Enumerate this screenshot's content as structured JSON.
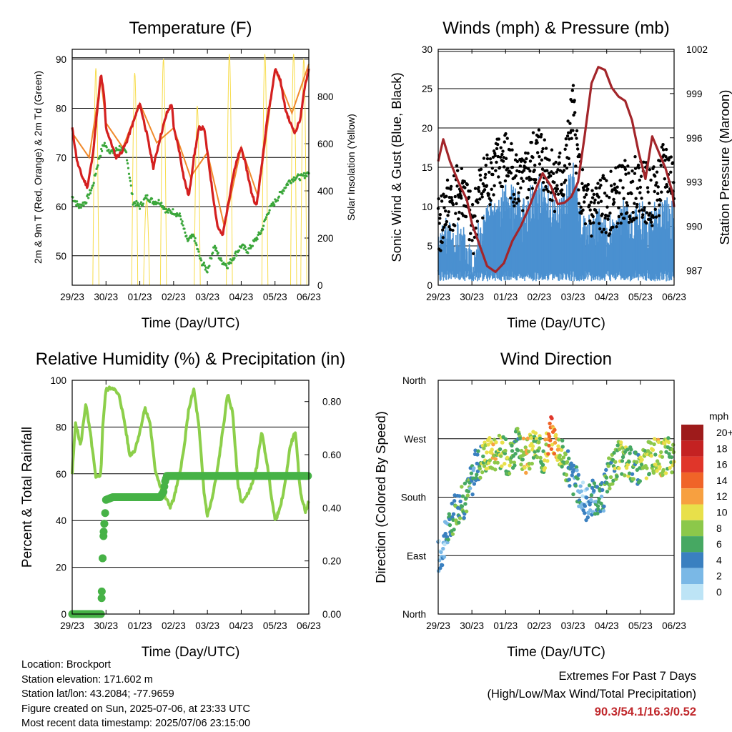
{
  "chart_data": [
    {
      "type": "line",
      "title": "Temperature (F)",
      "xlabel": "Time (Day/UTC)",
      "ylabel": "2m & 9m T (Red, Orange) & 2m Td (Green)",
      "y2label": "Solar Insolation (Yellow)",
      "x_ticks": [
        "29/23",
        "30/23",
        "01/23",
        "02/23",
        "03/23",
        "04/23",
        "05/23",
        "06/23"
      ],
      "ylim": [
        44,
        92
      ],
      "y_ticks": [
        50,
        60,
        70,
        80,
        90
      ],
      "y2lim": [
        0,
        1000
      ],
      "y2_ticks": [
        0,
        200,
        400,
        600,
        800
      ],
      "grid": true,
      "series": [
        {
          "name": "2m T",
          "color": "#d42020",
          "x": [
            0,
            0.15,
            0.3,
            0.45,
            0.6,
            0.75,
            0.85,
            0.95,
            1.0,
            1.15,
            1.3,
            1.45,
            1.6,
            1.75,
            1.9,
            2.0,
            2.2,
            2.4,
            2.6,
            2.8,
            2.95,
            3.0,
            3.15,
            3.3,
            3.45,
            3.6,
            3.75,
            3.9,
            4.0,
            4.15,
            4.3,
            4.45,
            4.6,
            4.75,
            4.9,
            5.0,
            5.15,
            5.3,
            5.45,
            5.6,
            5.75,
            5.9,
            6.0,
            6.15,
            6.3,
            6.45,
            6.6,
            6.75,
            6.9,
            7.0
          ],
          "values": [
            76,
            69,
            66,
            64,
            70,
            80,
            87,
            82,
            76,
            73,
            70,
            71,
            73,
            76,
            79,
            81,
            75,
            68,
            74,
            79,
            81,
            76,
            72,
            66,
            62,
            70,
            76,
            76,
            71,
            63,
            56,
            54,
            60,
            66,
            70,
            72,
            68,
            63,
            60,
            68,
            77,
            83,
            88,
            86,
            80,
            77,
            75,
            78,
            85,
            88
          ]
        },
        {
          "name": "9m T",
          "color": "#f08a2c",
          "x": [
            0,
            0.5,
            0.85,
            1.0,
            1.5,
            2.0,
            2.5,
            3.0,
            3.5,
            4.0,
            4.5,
            5.0,
            5.5,
            6.0,
            6.5,
            7.0
          ],
          "values": [
            75,
            70,
            86,
            77,
            72,
            81,
            73,
            76,
            66,
            71,
            56,
            72,
            62,
            88,
            79,
            89
          ]
        },
        {
          "name": "2m Td",
          "color": "#3aa63a",
          "x": [
            0,
            0.2,
            0.4,
            0.6,
            0.8,
            0.95,
            1.0,
            1.2,
            1.4,
            1.6,
            1.8,
            2.0,
            2.2,
            2.4,
            2.6,
            2.8,
            3.0,
            3.2,
            3.4,
            3.6,
            3.8,
            4.0,
            4.2,
            4.4,
            4.6,
            4.8,
            5.0,
            5.2,
            5.4,
            5.6,
            5.8,
            6.0,
            6.2,
            6.4,
            6.6,
            6.8,
            7.0
          ],
          "values": [
            62,
            60,
            61,
            64,
            70,
            73,
            72,
            71,
            72,
            71,
            61,
            60,
            62,
            61,
            61,
            59,
            59,
            58,
            53,
            54,
            49,
            47,
            52,
            49,
            48,
            50,
            52,
            51,
            53,
            55,
            59,
            61,
            63,
            65,
            66,
            66,
            67
          ]
        },
        {
          "name": "Solar Insolation",
          "color": "#f7dc4a",
          "axis": "y2",
          "peak_values": [
            920,
            900,
            360,
            960,
            760,
            980,
            980,
            980,
            960
          ],
          "peak_x": [
            0.7,
            1.85,
            2.2,
            2.7,
            3.7,
            4.65,
            5.7,
            6.55,
            6.85
          ]
        }
      ]
    },
    {
      "type": "scatter",
      "title": "Winds (mph) & Pressure (mb)",
      "xlabel": "Time (Day/UTC)",
      "ylabel": "Sonic Wind & Gust (Blue, Black)",
      "y2label": "Station Pressure (Maroon)",
      "x_ticks": [
        "29/23",
        "30/23",
        "01/23",
        "02/23",
        "03/23",
        "04/23",
        "05/23",
        "06/23"
      ],
      "ylim": [
        0,
        30
      ],
      "y_ticks": [
        0,
        5,
        10,
        15,
        20,
        25,
        30
      ],
      "y2lim": [
        986,
        1002
      ],
      "y2_ticks": [
        987,
        990,
        993,
        996,
        999,
        1002
      ],
      "grid": true,
      "series": [
        {
          "name": "Sonic Wind",
          "color": "#4a90d0",
          "x": [
            0,
            0.25,
            0.5,
            0.75,
            1.0,
            1.25,
            1.5,
            1.75,
            2.0,
            2.25,
            2.5,
            2.75,
            3.0,
            3.25,
            3.5,
            3.75,
            4.0,
            4.25,
            4.5,
            4.75,
            5.0,
            5.25,
            5.5,
            5.75,
            6.0,
            6.25,
            6.5,
            6.75,
            7.0
          ],
          "values": [
            4,
            6,
            5,
            5,
            3,
            6,
            8,
            9,
            10,
            10,
            8,
            10,
            11,
            10,
            9,
            9,
            13,
            7,
            6,
            7,
            6,
            6,
            8,
            7,
            8,
            7,
            8,
            9,
            8
          ]
        },
        {
          "name": "Gust",
          "color": "#000000",
          "x": [
            0,
            0.25,
            0.5,
            0.75,
            1.0,
            1.25,
            1.5,
            1.75,
            2.0,
            2.25,
            2.5,
            2.75,
            3.0,
            3.25,
            3.5,
            3.75,
            4.0,
            4.25,
            4.5,
            4.75,
            5.0,
            5.25,
            5.5,
            5.75,
            6.0,
            6.25,
            6.5,
            6.75,
            7.0
          ],
          "values": [
            7,
            10,
            11,
            12,
            7,
            12,
            14,
            15,
            16,
            14,
            12,
            15,
            17,
            15,
            13,
            14,
            22,
            11,
            9,
            10,
            10,
            11,
            12,
            12,
            13,
            11,
            12,
            15,
            13
          ]
        },
        {
          "name": "Station Pressure",
          "color": "#a3252a",
          "axis": "y2",
          "x": [
            0,
            0.15,
            0.35,
            0.6,
            0.85,
            1.0,
            1.2,
            1.45,
            1.7,
            1.95,
            2.2,
            2.45,
            2.7,
            2.95,
            3.1,
            3.35,
            3.55,
            3.75,
            3.95,
            4.15,
            4.35,
            4.55,
            4.75,
            4.95,
            5.15,
            5.35,
            5.55,
            5.75,
            5.95,
            6.15,
            6.35,
            6.55,
            6.75,
            6.95,
            7.0
          ],
          "values": [
            994.4,
            995.9,
            994.4,
            993.0,
            991.8,
            990.2,
            988.9,
            987.3,
            986.9,
            987.5,
            989.0,
            990.0,
            991.3,
            992.8,
            993.6,
            992.7,
            991.5,
            991.6,
            992.0,
            993.0,
            996.2,
            999.7,
            1000.8,
            1000.6,
            999.4,
            998.8,
            998.5,
            997.2,
            995.0,
            993.2,
            996.1,
            995.0,
            993.9,
            992.3,
            991.3
          ]
        }
      ]
    },
    {
      "type": "line",
      "title": "Relative Humidity (%) & Precipitation (in)",
      "xlabel": "Time (Day/UTC)",
      "ylabel": "Percent & Total Rainfall",
      "x_ticks": [
        "29/23",
        "30/23",
        "01/23",
        "02/23",
        "03/23",
        "04/23",
        "05/23",
        "06/23"
      ],
      "ylim": [
        0,
        100
      ],
      "y_ticks": [
        0,
        20,
        40,
        60,
        80,
        100
      ],
      "y2lim": [
        0,
        0.88
      ],
      "y2_ticks": [
        "0.00",
        "0.20",
        "0.40",
        "0.60",
        "0.80"
      ],
      "grid": true,
      "series": [
        {
          "name": "Relative Humidity",
          "color": "#8ccf4a",
          "x": [
            0,
            0.1,
            0.25,
            0.4,
            0.55,
            0.7,
            0.85,
            0.9,
            1.0,
            1.2,
            1.4,
            1.55,
            1.7,
            1.85,
            2.0,
            2.15,
            2.3,
            2.45,
            2.6,
            2.75,
            2.9,
            3.0,
            3.15,
            3.3,
            3.45,
            3.6,
            3.75,
            3.9,
            4.0,
            4.15,
            4.3,
            4.45,
            4.6,
            4.75,
            4.9,
            5.0,
            5.15,
            5.3,
            5.45,
            5.6,
            5.75,
            5.9,
            6.0,
            6.15,
            6.3,
            6.45,
            6.6,
            6.75,
            6.9,
            7.0
          ],
          "values": [
            60,
            82,
            72,
            90,
            76,
            58,
            60,
            80,
            96,
            97,
            93,
            82,
            68,
            70,
            78,
            88,
            82,
            62,
            55,
            50,
            46,
            49,
            58,
            70,
            88,
            96,
            80,
            52,
            42,
            50,
            62,
            78,
            94,
            86,
            56,
            48,
            50,
            55,
            62,
            78,
            66,
            50,
            40,
            45,
            56,
            72,
            78,
            52,
            44,
            48
          ]
        },
        {
          "name": "Total Precipitation",
          "color": "#46b246",
          "axis": "y2",
          "x": [
            0,
            0.85,
            0.87,
            0.9,
            0.93,
            0.97,
            1.0,
            1.2,
            2.0,
            2.6,
            2.7,
            2.75,
            2.8,
            3.5,
            4.5,
            5.5,
            6.5,
            7.0
          ],
          "values": [
            0.0,
            0.0,
            0.06,
            0.21,
            0.31,
            0.37,
            0.43,
            0.44,
            0.44,
            0.44,
            0.46,
            0.5,
            0.52,
            0.52,
            0.52,
            0.52,
            0.52,
            0.52
          ]
        }
      ]
    },
    {
      "type": "scatter",
      "title": "Wind Direction",
      "xlabel": "Time (Day/UTC)",
      "ylabel": "Direction (Colored By Speed)",
      "x_ticks": [
        "29/23",
        "30/23",
        "01/23",
        "02/23",
        "03/23",
        "04/23",
        "05/23",
        "06/23"
      ],
      "y_ticks": [
        "North",
        "East",
        "South",
        "West",
        "North"
      ],
      "ylim": [
        0,
        360
      ],
      "grid": true,
      "legend": {
        "title": "mph",
        "position": "right",
        "labels": [
          "20+",
          "18",
          "16",
          "14",
          "12",
          "10",
          "8",
          "6",
          "4",
          "2",
          "0"
        ],
        "colors": [
          "#9e1b1b",
          "#c42222",
          "#e0362a",
          "#f06428",
          "#f7a040",
          "#e8e04a",
          "#8cc84a",
          "#46a862",
          "#3a80c0",
          "#7ab8e6",
          "#bde4f6"
        ]
      },
      "points": {
        "x": [
          0.05,
          0.3,
          0.55,
          0.8,
          1.1,
          1.35,
          1.6,
          1.85,
          2.1,
          2.35,
          2.6,
          2.85,
          3.1,
          3.35,
          3.55,
          3.8,
          4.1,
          4.35,
          4.6,
          4.85,
          5.1,
          5.35,
          5.6,
          5.85,
          6.1,
          6.35,
          6.6,
          6.85
        ],
        "directions": [
          90,
          130,
          165,
          175,
          225,
          245,
          250,
          250,
          240,
          260,
          240,
          260,
          240,
          280,
          260,
          230,
          200,
          170,
          180,
          175,
          220,
          240,
          235,
          225,
          230,
          245,
          240,
          245
        ],
        "speeds": [
          2,
          4,
          6,
          6,
          4,
          8,
          10,
          8,
          8,
          6,
          10,
          8,
          8,
          14,
          10,
          6,
          4,
          2,
          4,
          4,
          6,
          8,
          8,
          6,
          8,
          8,
          10,
          8
        ]
      }
    }
  ],
  "info": {
    "location": "Location: Brockport",
    "elevation": "Station elevation: 171.602 m",
    "latlon": "Station lat/lon: 43.2084; -77.9659",
    "created": "Figure created on Sun, 2025-07-06, at 23:33 UTC",
    "recent": "Most recent data timestamp: 2025/07/06 23:15:00"
  },
  "extremes": {
    "heading": "Extremes For Past 7 Days",
    "subheading": "(High/Low/Max Wind/Total Precipitation)",
    "values": "90.3/54.1/16.3/0.52"
  }
}
